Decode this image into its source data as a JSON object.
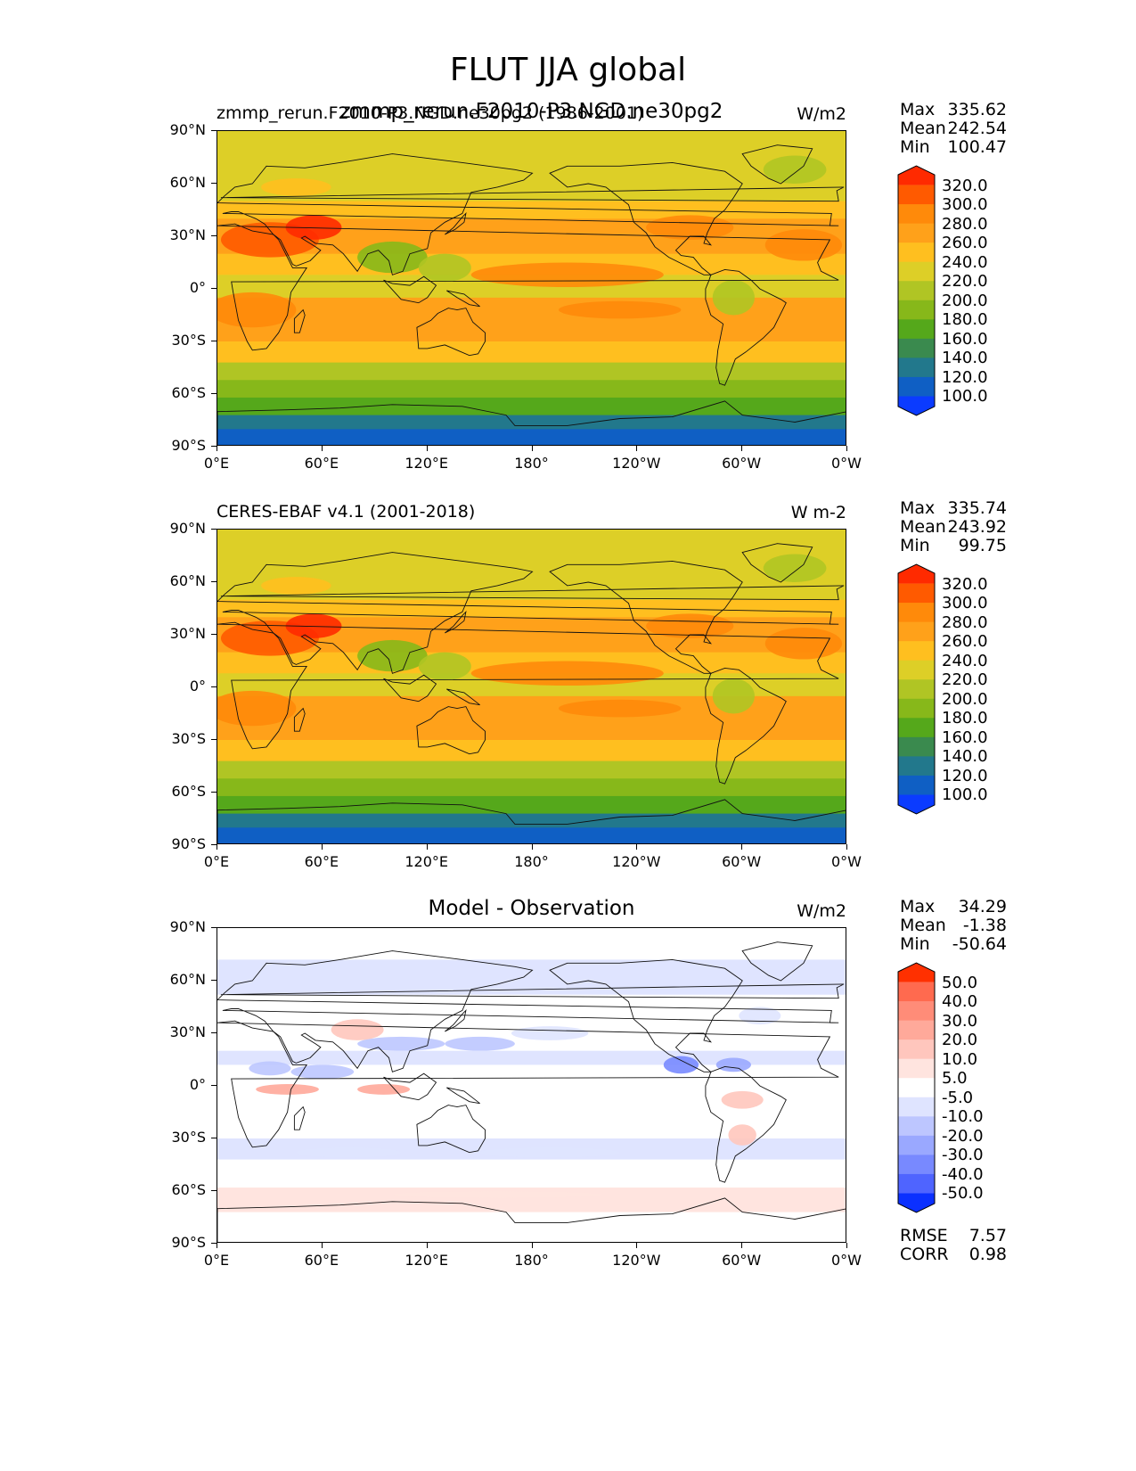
{
  "title": "FLUT JJA global",
  "x_ticks": [
    "0°E",
    "60°E",
    "120°E",
    "180°",
    "120°W",
    "60°W",
    "0°W"
  ],
  "y_ticks": [
    "90°N",
    "60°N",
    "30°N",
    "0°",
    "30°S",
    "60°S",
    "90°S"
  ],
  "panels": [
    {
      "id": "model",
      "title_left": "zmmp_rerun.F2010-P3.NGD.ne30pg2 (1986-2001)",
      "title_center": "zmmp_rerun.F2010-P3.NGD.ne30pg2",
      "units": "W/m2",
      "stats": {
        "Max": "335.62",
        "Mean": "242.54",
        "Min": "100.47"
      },
      "colorbar": {
        "labels": [
          "320.0",
          "300.0",
          "280.0",
          "260.0",
          "240.0",
          "220.0",
          "200.0",
          "180.0",
          "160.0",
          "140.0",
          "120.0",
          "100.0"
        ],
        "colors": [
          "#ff2a00",
          "#ff5a00",
          "#ff8a0a",
          "#ffa11a",
          "#ffbf1f",
          "#ddcf27",
          "#b0c524",
          "#87b81a",
          "#55a81b",
          "#3a8a4e",
          "#22788c",
          "#0f5fc4",
          "#0b3bff"
        ]
      }
    },
    {
      "id": "obs",
      "title_left": "CERES-EBAF v4.1 (2001-2018)",
      "units": "W m-2",
      "stats": {
        "Max": "335.74",
        "Mean": "243.92",
        "Min": "99.75"
      },
      "colorbar": {
        "labels": [
          "320.0",
          "300.0",
          "280.0",
          "260.0",
          "240.0",
          "220.0",
          "200.0",
          "180.0",
          "160.0",
          "140.0",
          "120.0",
          "100.0"
        ],
        "colors": [
          "#ff2a00",
          "#ff5a00",
          "#ff8a0a",
          "#ffa11a",
          "#ffbf1f",
          "#ddcf27",
          "#b0c524",
          "#87b81a",
          "#55a81b",
          "#3a8a4e",
          "#22788c",
          "#0f5fc4",
          "#0b3bff"
        ]
      }
    },
    {
      "id": "diff",
      "title_center": "Model - Observation",
      "units": "W/m2",
      "stats": {
        "Max": "34.29",
        "Mean": "-1.38",
        "Min": "-50.64"
      },
      "colorbar": {
        "labels": [
          "50.0",
          "40.0",
          "30.0",
          "20.0",
          "10.0",
          "5.0",
          "-5.0",
          "-10.0",
          "-20.0",
          "-30.0",
          "-40.0",
          "-50.0"
        ],
        "colors": [
          "#ff3000",
          "#ff6a4f",
          "#ff8c78",
          "#ffa99a",
          "#ffc6bd",
          "#ffe4df",
          "#ffffff",
          "#dfe4ff",
          "#bdc6ff",
          "#9aa8ff",
          "#7889ff",
          "#4f64ff",
          "#0b30ff"
        ]
      },
      "metrics": {
        "RMSE": "7.57",
        "CORR": "0.98"
      }
    }
  ]
}
